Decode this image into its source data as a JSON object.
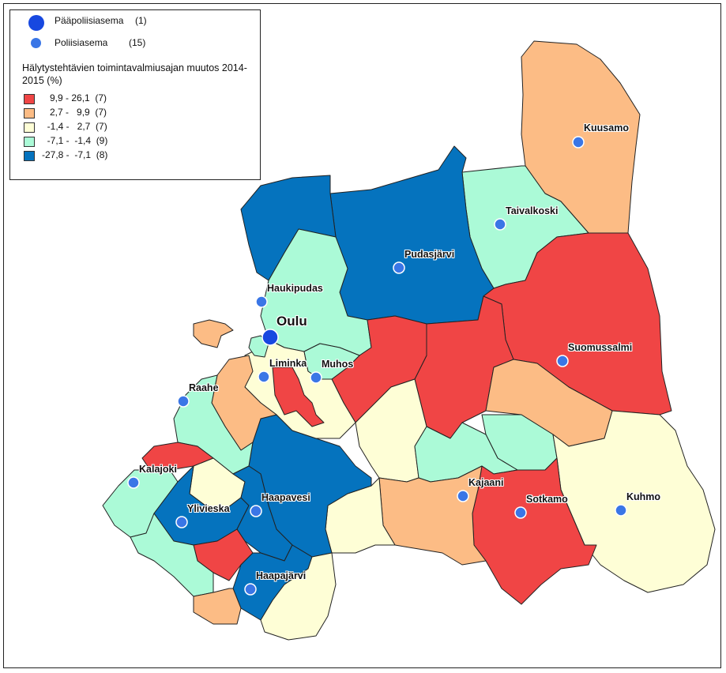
{
  "legend": {
    "main_station": "Pääpoliisiasema",
    "main_station_count": "(1)",
    "station": "Poliisiasema",
    "station_count": "(15)",
    "title": "Hälytystehtävien toimintavalmiusajan muutos 2014-2015 (%)",
    "classes": [
      {
        "label": "   9,9 - 26,1  (7)",
        "color": "#f04545"
      },
      {
        "label": "   2,7 -   9,9  (7)",
        "color": "#fcbc85"
      },
      {
        "label": "  -1,4 -   2,7  (7)",
        "color": "#fefed6"
      },
      {
        "label": "  -7,1 -  -1,4  (9)",
        "color": "#abfad7"
      },
      {
        "label": "-27,8 -  -7,1  (8)",
        "color": "#0573be"
      }
    ]
  },
  "colors": {
    "red": "#f04545",
    "orange": "#fcbc85",
    "yellow": "#fefed6",
    "mint": "#abfad7",
    "blue": "#0573be",
    "station_marker": "#3a76e6",
    "main_marker": "#1748e0"
  },
  "stations": [
    {
      "name": "Oulu",
      "main": true
    },
    {
      "name": "Kuusamo"
    },
    {
      "name": "Taivalkoski"
    },
    {
      "name": "Pudasjärvi"
    },
    {
      "name": "Haukipudas"
    },
    {
      "name": "Suomussalmi"
    },
    {
      "name": "Liminka"
    },
    {
      "name": "Muhos"
    },
    {
      "name": "Raahe"
    },
    {
      "name": "Kalajoki"
    },
    {
      "name": "Kajaani"
    },
    {
      "name": "Sotkamo"
    },
    {
      "name": "Kuhmo"
    },
    {
      "name": "Haapavesi"
    },
    {
      "name": "Ylivieska"
    },
    {
      "name": "Haapajärvi"
    }
  ]
}
